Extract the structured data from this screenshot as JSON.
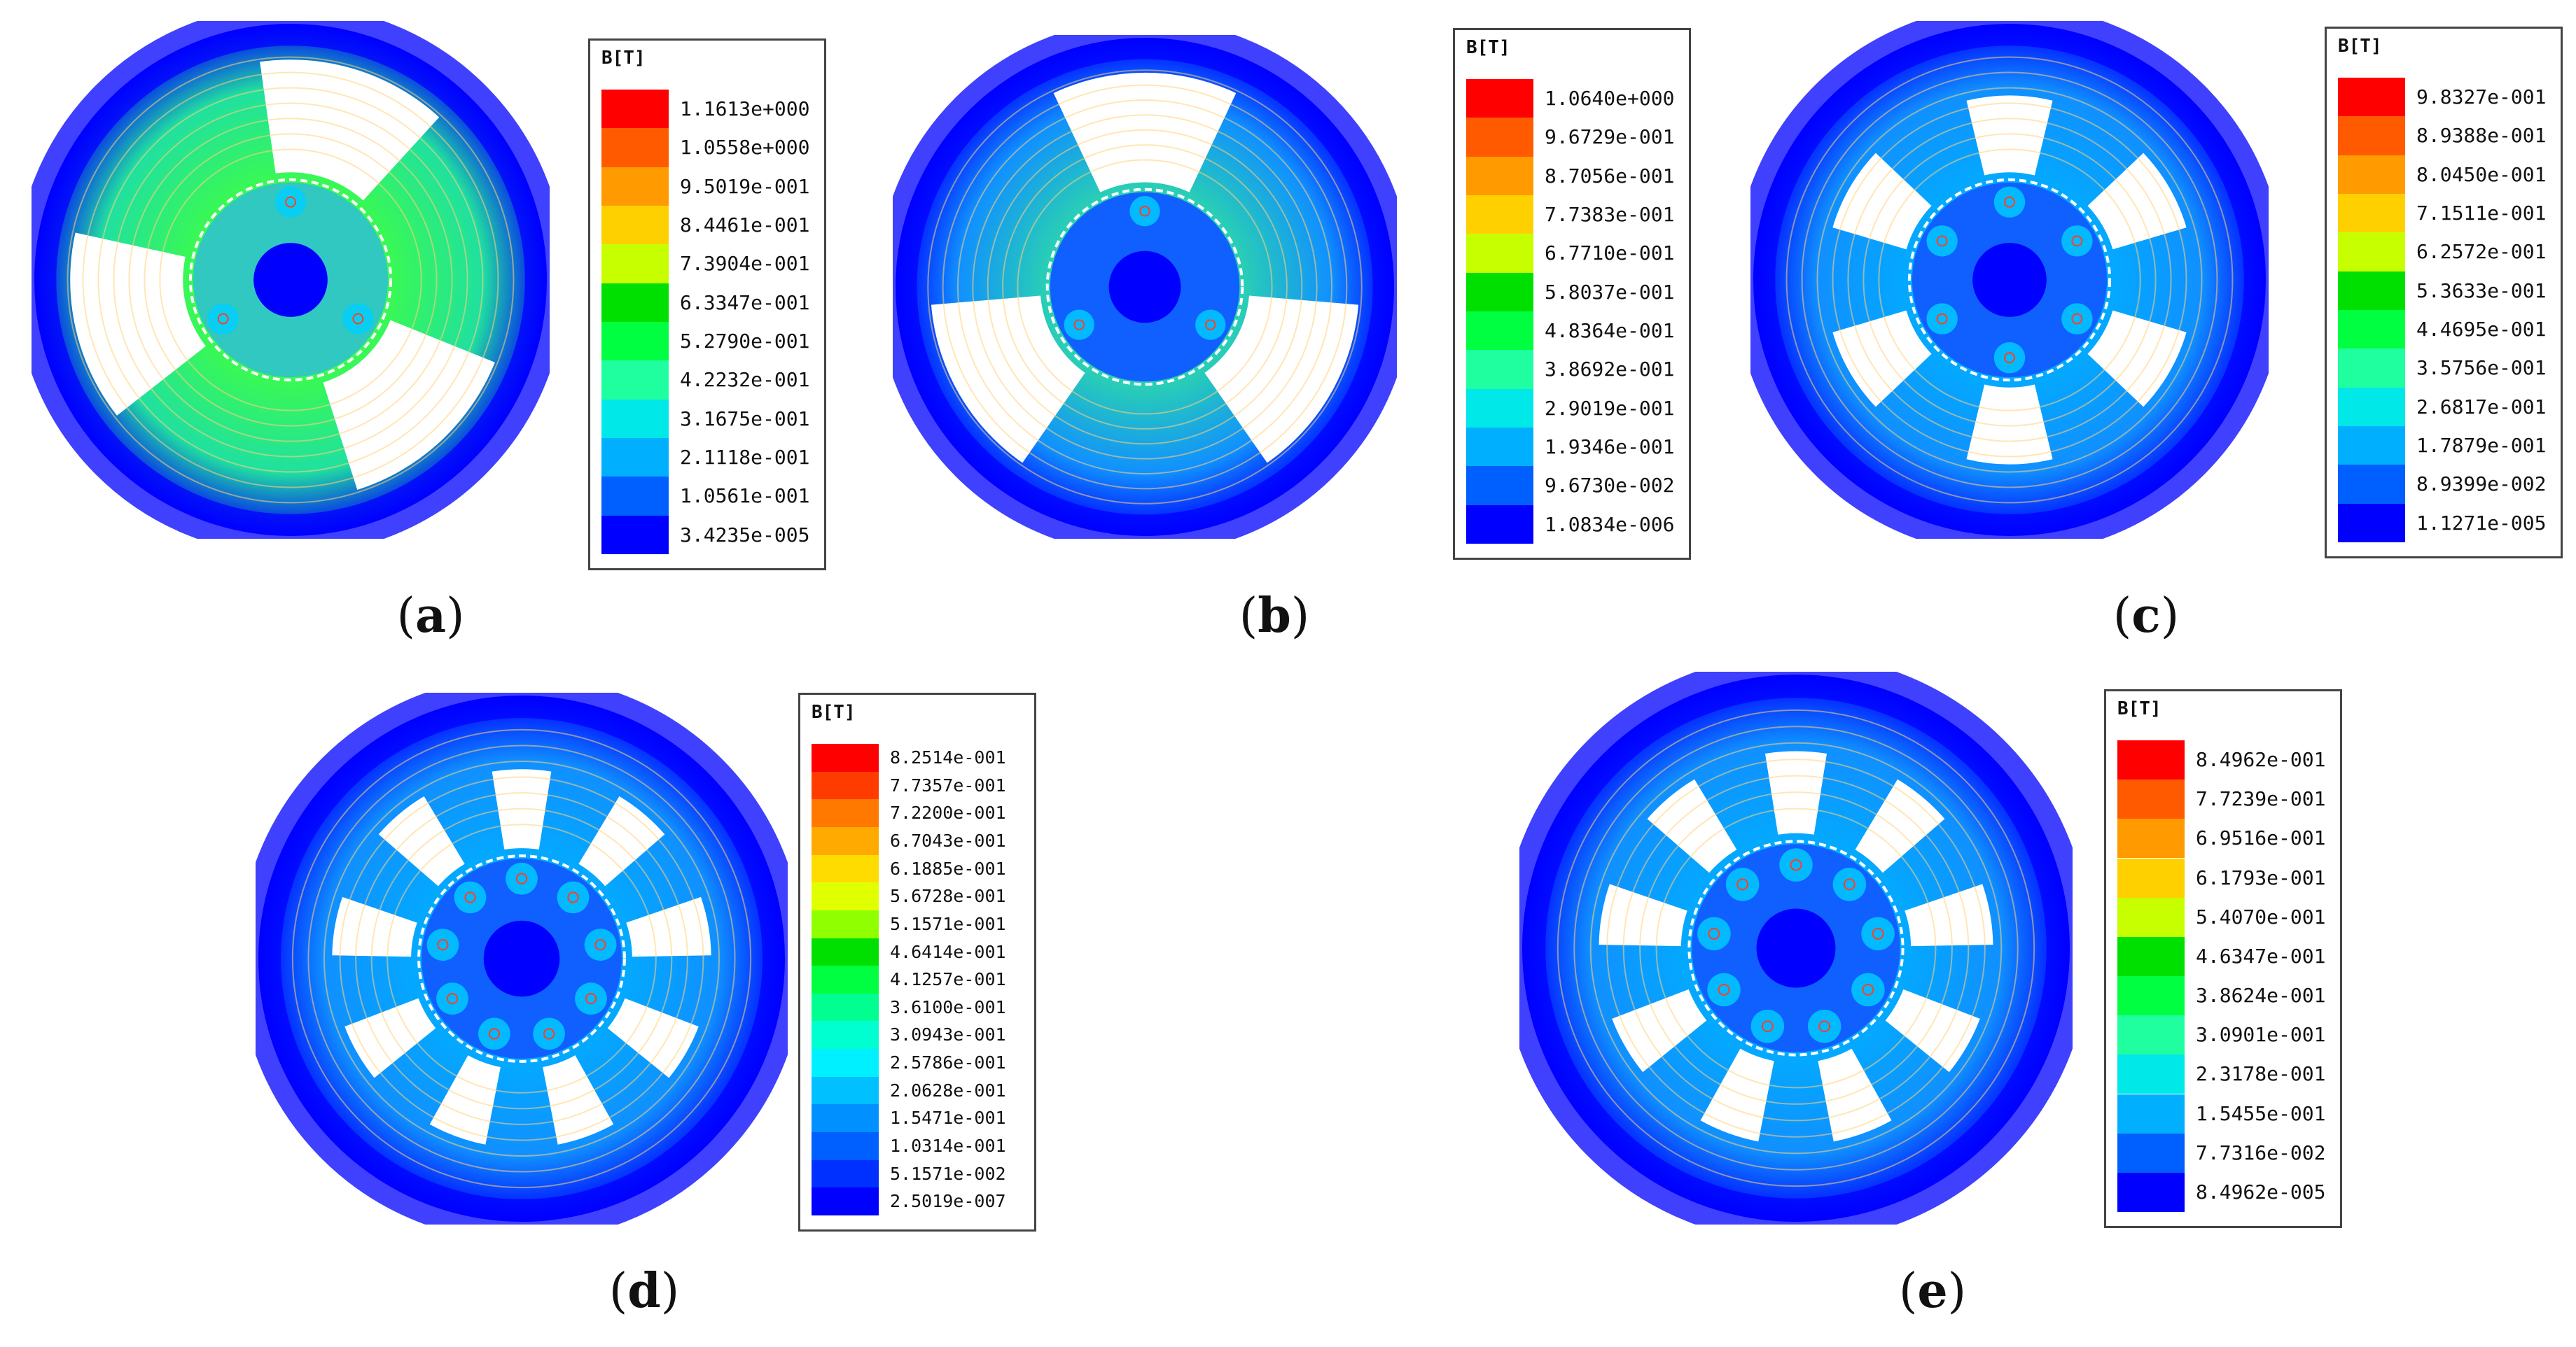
{
  "figure": {
    "panels": [
      {
        "id": "a",
        "caption_letter": "a",
        "legend_title": "B[T]",
        "legend_values": [
          "1.1613e+000",
          "1.0558e+000",
          "9.5019e-001",
          "8.4461e-001",
          "7.3904e-001",
          "6.3347e-001",
          "5.2790e-001",
          "4.2232e-001",
          "3.1675e-001",
          "2.1118e-001",
          "1.0561e-001",
          "3.4235e-005"
        ],
        "stator_slots": 3,
        "rotor_poles": 3,
        "field_level": "high"
      },
      {
        "id": "b",
        "caption_letter": "b",
        "legend_title": "B[T]",
        "legend_values": [
          "1.0640e+000",
          "9.6729e-001",
          "8.7056e-001",
          "7.7383e-001",
          "6.7710e-001",
          "5.8037e-001",
          "4.8364e-001",
          "3.8692e-001",
          "2.9019e-001",
          "1.9346e-001",
          "9.6730e-002",
          "1.0834e-006"
        ],
        "stator_slots": 3,
        "rotor_poles": 3,
        "field_level": "medium"
      },
      {
        "id": "c",
        "caption_letter": "c",
        "legend_title": "B[T]",
        "legend_values": [
          "9.8327e-001",
          "8.9388e-001",
          "8.0450e-001",
          "7.1511e-001",
          "6.2572e-001",
          "5.3633e-001",
          "4.4695e-001",
          "3.5756e-001",
          "2.6817e-001",
          "1.7879e-001",
          "8.9399e-002",
          "1.1271e-005"
        ],
        "stator_slots": 6,
        "rotor_poles": 6,
        "field_level": "low"
      },
      {
        "id": "d",
        "caption_letter": "d",
        "legend_title": "B[T]",
        "legend_values": [
          "8.2514e-001",
          "7.7357e-001",
          "7.2200e-001",
          "6.7043e-001",
          "6.1885e-001",
          "5.6728e-001",
          "5.1571e-001",
          "4.6414e-001",
          "4.1257e-001",
          "3.6100e-001",
          "3.0943e-001",
          "2.5786e-001",
          "2.0628e-001",
          "1.5471e-001",
          "1.0314e-001",
          "5.1571e-002",
          "2.5019e-007"
        ],
        "stator_slots": 9,
        "rotor_poles": 9,
        "field_level": "low"
      },
      {
        "id": "e",
        "caption_letter": "e",
        "legend_title": "B[T]",
        "legend_values": [
          "8.4962e-001",
          "7.7239e-001",
          "6.9516e-001",
          "6.1793e-001",
          "5.4070e-001",
          "4.6347e-001",
          "3.8624e-001",
          "3.0901e-001",
          "2.3178e-001",
          "1.5455e-001",
          "7.7316e-002",
          "8.4962e-005"
        ],
        "stator_slots": 9,
        "rotor_poles": 9,
        "field_level": "low"
      }
    ],
    "colors": {
      "scale12": [
        "#ff0000",
        "#ff5a00",
        "#ff9a00",
        "#ffd000",
        "#c8ff00",
        "#00e000",
        "#00ff40",
        "#20ffa0",
        "#00e8e8",
        "#00b0ff",
        "#0060ff",
        "#0000ff"
      ],
      "scale17": [
        "#ff0000",
        "#ff3c00",
        "#ff7800",
        "#ffaa00",
        "#ffdc00",
        "#e0ff00",
        "#90ff00",
        "#00e000",
        "#00ff40",
        "#00ff90",
        "#00ffd0",
        "#00f0ff",
        "#00c0ff",
        "#0090ff",
        "#0060ff",
        "#0030ff",
        "#0000ff"
      ],
      "low_field": "#0000ff",
      "mid_field": "#00b0ff",
      "high_field": "#40ff40",
      "contour_line": "#ffd27a",
      "airgap_line": "#ffffff"
    }
  }
}
